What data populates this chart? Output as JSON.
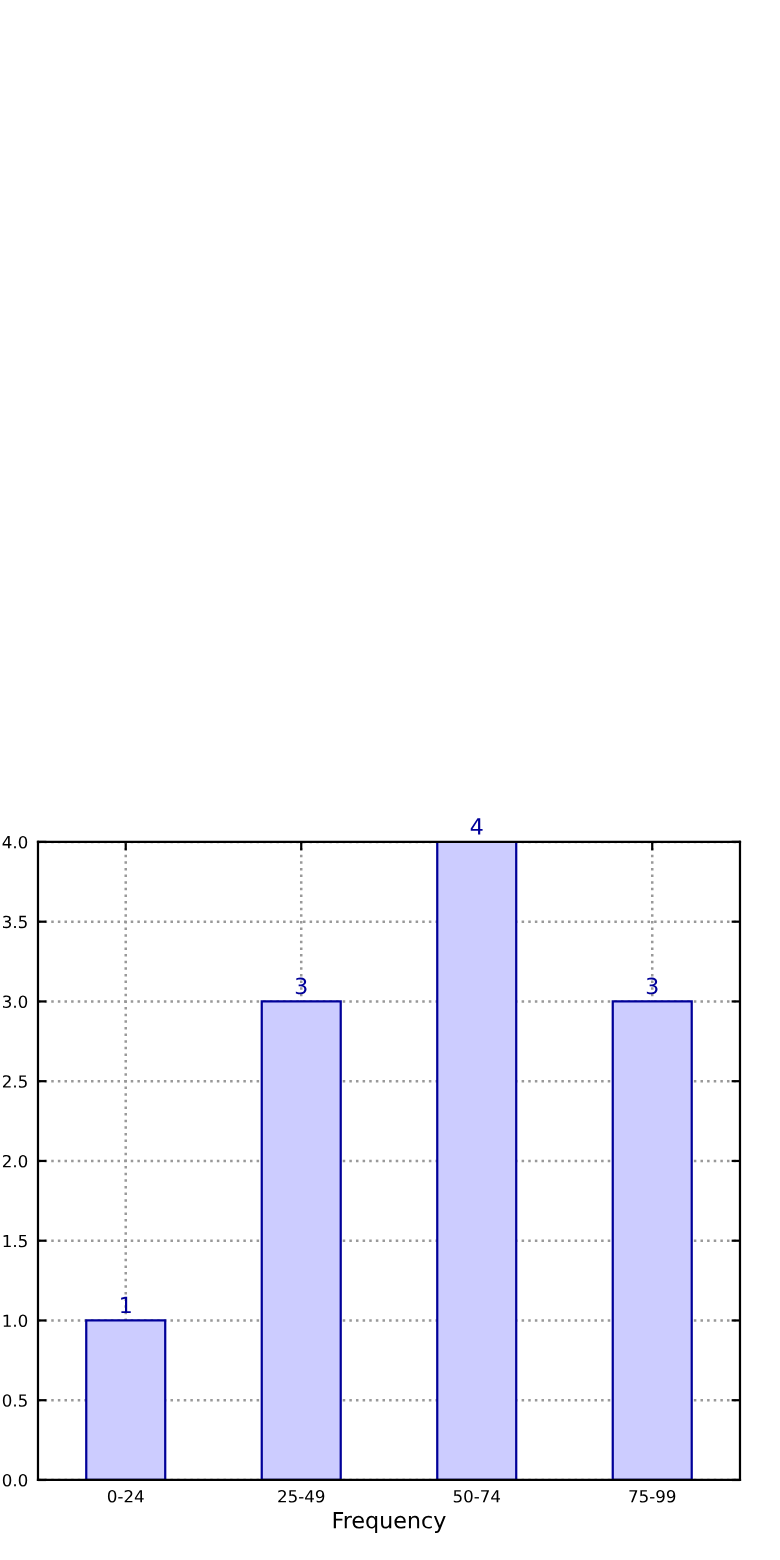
{
  "chart_data": {
    "type": "bar",
    "xlabel": "Frequency",
    "categories": [
      "0-24",
      "25-49",
      "50-74",
      "75-99"
    ],
    "values": [
      1,
      3,
      4,
      3
    ],
    "color": "#ccccff",
    "ylim": [
      0,
      4
    ],
    "yticks": [
      {
        "value": 0,
        "label": "0.0"
      },
      {
        "value": 0.5,
        "label": "0.5"
      },
      {
        "value": 1,
        "label": "1.0"
      },
      {
        "value": 1.5,
        "label": "1.5"
      },
      {
        "value": 2,
        "label": "2.0"
      },
      {
        "value": 2.5,
        "label": "2.5"
      },
      {
        "value": 3,
        "label": "3.0"
      },
      {
        "value": 3.5,
        "label": "3.5"
      },
      {
        "value": 4,
        "label": "4.0"
      }
    ],
    "grid": true,
    "data_labels": true
  }
}
